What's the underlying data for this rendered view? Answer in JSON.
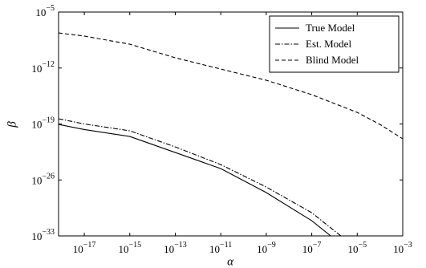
{
  "chart_data": {
    "type": "line",
    "xlabel": "α",
    "ylabel": "β",
    "xscale": "log",
    "yscale": "log",
    "legend": "upper right",
    "xlim": [
      7.4e-19,
      0.001
    ],
    "ylim": [
      1e-33,
      1e-05
    ],
    "xticks": [
      {
        "value": 1e-17,
        "label": "10−17"
      },
      {
        "value": 1e-15,
        "label": "10−15"
      },
      {
        "value": 1e-13,
        "label": "10−13"
      },
      {
        "value": 1e-11,
        "label": "10−11"
      },
      {
        "value": 1e-09,
        "label": "10−9"
      },
      {
        "value": 1e-07,
        "label": "10−7"
      },
      {
        "value": 1e-05,
        "label": "10−5"
      },
      {
        "value": 0.001,
        "label": "10−3"
      }
    ],
    "yticks": [
      {
        "value": 1e-33,
        "label": "10−33"
      },
      {
        "value": 1e-26,
        "label": "10−26"
      },
      {
        "value": 1e-19,
        "label": "10−19"
      },
      {
        "value": 1e-12,
        "label": "10−12"
      },
      {
        "value": 1e-05,
        "label": "10−5"
      }
    ],
    "series": [
      {
        "name": "True Model",
        "color": "#000000",
        "style": "solid",
        "x": [
          7.4e-19,
          1e-17,
          1e-15,
          1e-13,
          1e-11,
          1e-09,
          1e-07,
          6.8e-07
        ],
        "values": [
          8.7e-20,
          2e-20,
          2.75e-21,
          2.7e-23,
          2.6e-25,
          2.6e-28,
          7.9e-32,
          1e-33
        ]
      },
      {
        "name": "Est. Model",
        "color": "#000000",
        "style": "dashdot",
        "x": [
          7.4e-19,
          1e-17,
          1e-15,
          1e-13,
          1e-11,
          1e-09,
          1e-07,
          1.9e-06
        ],
        "values": [
          4.5e-19,
          1e-19,
          1.4e-20,
          1.35e-22,
          8.3e-25,
          1.3e-27,
          7.9e-31,
          1e-33
        ]
      },
      {
        "name": "Blind Model",
        "color": "#000000",
        "style": "dashed",
        "x": [
          7.4e-19,
          1e-17,
          1e-15,
          1e-13,
          1e-11,
          1e-09,
          1e-07,
          1e-05,
          0.0001,
          0.001
        ],
        "values": [
          2.45e-08,
          9.8e-09,
          9.5e-10,
          1.9e-11,
          7.4e-13,
          2.95e-14,
          4.6e-16,
          2.8e-18,
          8.7e-20,
          1.4e-21
        ]
      }
    ]
  }
}
